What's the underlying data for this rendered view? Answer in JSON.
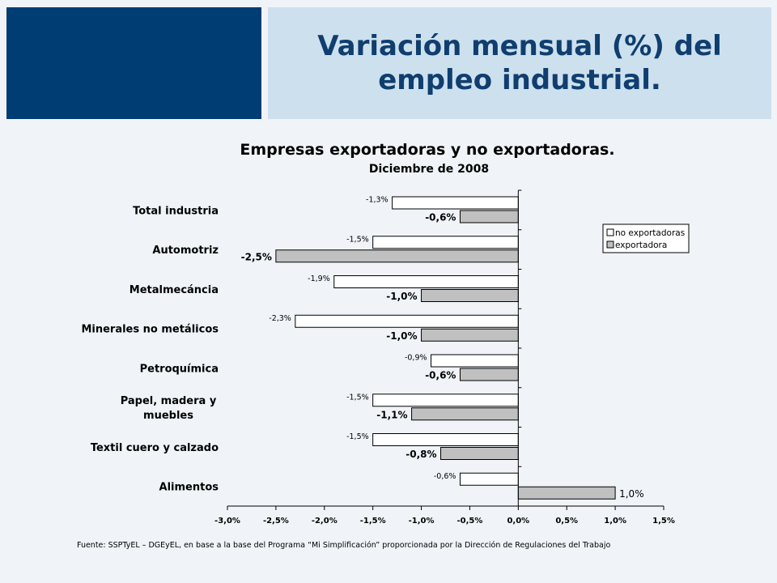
{
  "slide_title_line1": "Variación mensual (%) del",
  "slide_title_line2": "empleo industrial.",
  "source_note": "Fuente: SSPTyEL – DGEyEL, en base a la base del Programa “Mi Simplificación” proporcionada por la Dirección de Regulaciones del Trabajo",
  "colors": {
    "header_dark": "#003d73",
    "header_light": "#cde0ee",
    "title_text": "#0f3e6f",
    "bar_no_exportadoras": "#ffffff",
    "bar_exportadora": "#c0c0c0"
  },
  "chart_data": {
    "type": "bar",
    "orientation": "horizontal",
    "title": "Empresas exportadoras y no exportadoras.",
    "subtitle": "Diciembre de 2008",
    "categories": [
      "Total industria",
      "Automotriz",
      "Metalmecáncia",
      "Minerales no metálicos",
      "Petroquímica",
      "Papel, madera y muebles",
      "Textil cuero y calzado",
      "Alimentos"
    ],
    "series": [
      {
        "name": "no exportadoras",
        "values": [
          -1.3,
          -1.5,
          -1.9,
          -2.3,
          -0.9,
          -1.5,
          -1.5,
          -0.6
        ],
        "labels": [
          "-1,3%",
          "-1,5%",
          "-1,9%",
          "-2,3%",
          "-0,9%",
          "-1,5%",
          "-1,5%",
          "-0,6%"
        ]
      },
      {
        "name": "exportadora",
        "values": [
          -0.6,
          -2.5,
          -1.0,
          -1.0,
          -0.6,
          -1.1,
          -0.8,
          1.0
        ],
        "labels": [
          "-0,6%",
          "-2,5%",
          "-1,0%",
          "-1,0%",
          "-0,6%",
          "-1,1%",
          "-0,8%",
          "1,0%"
        ]
      }
    ],
    "xlim": [
      -3.0,
      1.5
    ],
    "x_ticks": [
      -3.0,
      -2.5,
      -2.0,
      -1.5,
      -1.0,
      -0.5,
      0.0,
      0.5,
      1.0,
      1.5
    ],
    "x_tick_labels": [
      "-3,0%",
      "-2,5%",
      "-2,0%",
      "-1,5%",
      "-1,0%",
      "-0,5%",
      "0,0%",
      "0,5%",
      "1,0%",
      "1,5%"
    ],
    "legend_position": "right",
    "grid": false
  }
}
